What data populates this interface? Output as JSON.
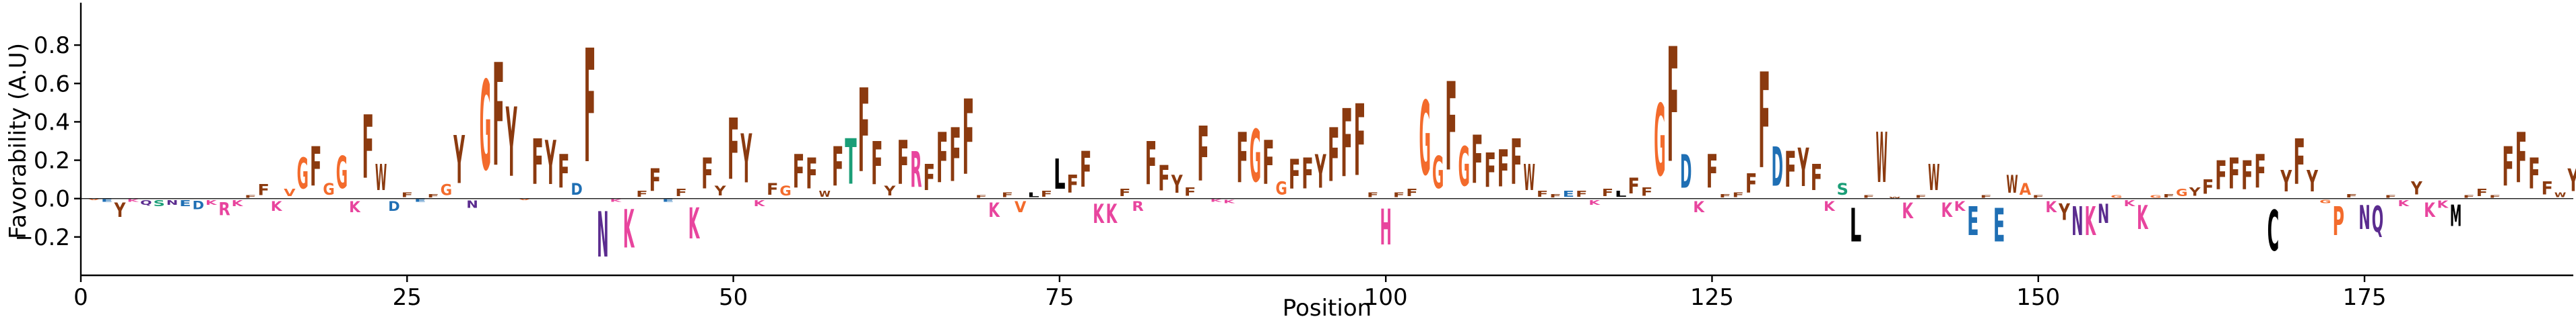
{
  "chart_data": {
    "type": "bar",
    "kind": "sequence-logo",
    "title": "",
    "xlabel": "Position",
    "ylabel": "Favorability (A.U)",
    "xlim": [
      0,
      191
    ],
    "ylim": [
      -0.4,
      1.0
    ],
    "x_ticks": [
      0,
      25,
      50,
      75,
      100,
      125,
      150,
      175
    ],
    "y_ticks": [
      -0.2,
      0.0,
      0.2,
      0.4,
      0.6,
      0.8
    ],
    "y_tick_labels": [
      "−0.2",
      "0.0",
      "0.2",
      "0.4",
      "0.6",
      "0.8"
    ],
    "colors": {
      "F": "#8B3A0F",
      "W": "#8B3A0F",
      "Y": "#8B3A0F",
      "G": "#F36B2C",
      "V": "#F36B2C",
      "A": "#F36B2C",
      "I": "#F36B2C",
      "L": "#000000",
      "M": "#000000",
      "C": "#000000",
      "D": "#1F6FB4",
      "E": "#1F6FB4",
      "K": "#E8459E",
      "R": "#E8459E",
      "H": "#E8459E",
      "N": "#5B2C8F",
      "Q": "#5B2C8F",
      "S": "#1B9E77",
      "T": "#1B9E77",
      "P": "#F36B2C"
    },
    "positions": [
      {
        "x": 1,
        "letter": "V",
        "value": -0.01
      },
      {
        "x": 2,
        "letter": "E",
        "value": -0.02
      },
      {
        "x": 3,
        "letter": "Y",
        "value": -0.12
      },
      {
        "x": 4,
        "letter": "K",
        "value": -0.02
      },
      {
        "x": 5,
        "letter": "Q",
        "value": -0.04
      },
      {
        "x": 6,
        "letter": "S",
        "value": -0.05
      },
      {
        "x": 7,
        "letter": "N",
        "value": -0.04
      },
      {
        "x": 8,
        "letter": "E",
        "value": -0.05
      },
      {
        "x": 9,
        "letter": "D",
        "value": -0.07
      },
      {
        "x": 10,
        "letter": "K",
        "value": -0.04
      },
      {
        "x": 11,
        "letter": "R",
        "value": -0.11
      },
      {
        "x": 12,
        "letter": "K",
        "value": -0.05
      },
      {
        "x": 13,
        "letter": "F",
        "value": 0.02
      },
      {
        "x": 14,
        "letter": "F",
        "value": 0.09
      },
      {
        "x": 15,
        "letter": "K",
        "value": -0.08
      },
      {
        "x": 16,
        "letter": "V",
        "value": 0.06
      },
      {
        "x": 17,
        "letter": "G",
        "value": 0.26
      },
      {
        "x": 18,
        "letter": "F",
        "value": 0.33
      },
      {
        "x": 19,
        "letter": "G",
        "value": 0.1
      },
      {
        "x": 20,
        "letter": "G",
        "value": 0.27
      },
      {
        "x": 21,
        "letter": "K",
        "value": -0.09
      },
      {
        "x": 22,
        "letter": "F",
        "value": 0.53
      },
      {
        "x": 23,
        "letter": "W",
        "value": 0.22
      },
      {
        "x": 24,
        "letter": "D",
        "value": -0.08
      },
      {
        "x": 25,
        "letter": "F",
        "value": 0.04
      },
      {
        "x": 26,
        "letter": "E",
        "value": -0.02
      },
      {
        "x": 27,
        "letter": "F",
        "value": 0.03
      },
      {
        "x": 28,
        "letter": "G",
        "value": 0.09
      },
      {
        "x": 29,
        "letter": "Y",
        "value": 0.4
      },
      {
        "x": 30,
        "letter": "N",
        "value": -0.06
      },
      {
        "x": 31,
        "letter": "G",
        "value": 0.75
      },
      {
        "x": 32,
        "letter": "F",
        "value": 0.86
      },
      {
        "x": 33,
        "letter": "Y",
        "value": 0.58
      },
      {
        "x": 34,
        "letter": "V",
        "value": -0.01
      },
      {
        "x": 35,
        "letter": "F",
        "value": 0.38
      },
      {
        "x": 36,
        "letter": "Y",
        "value": 0.37
      },
      {
        "x": 37,
        "letter": "F",
        "value": 0.28
      },
      {
        "x": 38,
        "letter": "D",
        "value": 0.1
      },
      {
        "x": 39,
        "letter": "F",
        "value": 0.95
      },
      {
        "x": 40,
        "letter": "N",
        "value": -0.38
      },
      {
        "x": 41,
        "letter": "K",
        "value": -0.02
      },
      {
        "x": 42,
        "letter": "K",
        "value": -0.32
      },
      {
        "x": 43,
        "letter": "F",
        "value": 0.05
      },
      {
        "x": 44,
        "letter": "F",
        "value": 0.19
      },
      {
        "x": 45,
        "letter": "E",
        "value": -0.02
      },
      {
        "x": 46,
        "letter": "F",
        "value": 0.06
      },
      {
        "x": 47,
        "letter": "K",
        "value": -0.26
      },
      {
        "x": 48,
        "letter": "F",
        "value": 0.26
      },
      {
        "x": 49,
        "letter": "Y",
        "value": 0.08
      },
      {
        "x": 50,
        "letter": "F",
        "value": 0.51
      },
      {
        "x": 51,
        "letter": "Y",
        "value": 0.41
      },
      {
        "x": 52,
        "letter": "K",
        "value": -0.05
      },
      {
        "x": 53,
        "letter": "F",
        "value": 0.1
      },
      {
        "x": 54,
        "letter": "G",
        "value": 0.08
      },
      {
        "x": 55,
        "letter": "F",
        "value": 0.28
      },
      {
        "x": 56,
        "letter": "F",
        "value": 0.26
      },
      {
        "x": 57,
        "letter": "W",
        "value": 0.05
      },
      {
        "x": 58,
        "letter": "F",
        "value": 0.33
      },
      {
        "x": 59,
        "letter": "T",
        "value": 0.38
      },
      {
        "x": 60,
        "letter": "F",
        "value": 0.7
      },
      {
        "x": 61,
        "letter": "F",
        "value": 0.36
      },
      {
        "x": 62,
        "letter": "Y",
        "value": 0.08
      },
      {
        "x": 63,
        "letter": "F",
        "value": 0.37
      },
      {
        "x": 64,
        "letter": "R",
        "value": 0.3
      },
      {
        "x": 65,
        "letter": "F",
        "value": 0.22
      },
      {
        "x": 66,
        "letter": "F",
        "value": 0.42
      },
      {
        "x": 67,
        "letter": "F",
        "value": 0.45
      },
      {
        "x": 68,
        "letter": "F",
        "value": 0.63
      },
      {
        "x": 69,
        "letter": "F",
        "value": 0.02
      },
      {
        "x": 70,
        "letter": "K",
        "value": -0.12
      },
      {
        "x": 71,
        "letter": "F",
        "value": 0.04
      },
      {
        "x": 72,
        "letter": "V",
        "value": -0.09
      },
      {
        "x": 73,
        "letter": "L",
        "value": 0.04
      },
      {
        "x": 74,
        "letter": "F",
        "value": 0.05
      },
      {
        "x": 75,
        "letter": "L",
        "value": 0.25
      },
      {
        "x": 76,
        "letter": "F",
        "value": 0.15
      },
      {
        "x": 77,
        "letter": "F",
        "value": 0.3
      },
      {
        "x": 78,
        "letter": "K",
        "value": -0.16
      },
      {
        "x": 79,
        "letter": "K",
        "value": -0.16
      },
      {
        "x": 80,
        "letter": "F",
        "value": 0.06
      },
      {
        "x": 81,
        "letter": "R",
        "value": -0.08
      },
      {
        "x": 82,
        "letter": "F",
        "value": 0.36
      },
      {
        "x": 83,
        "letter": "F",
        "value": 0.21
      },
      {
        "x": 84,
        "letter": "Y",
        "value": 0.15
      },
      {
        "x": 85,
        "letter": "F",
        "value": 0.07
      },
      {
        "x": 86,
        "letter": "F",
        "value": 0.46
      },
      {
        "x": 87,
        "letter": "K",
        "value": -0.02
      },
      {
        "x": 88,
        "letter": "K",
        "value": -0.03
      },
      {
        "x": 89,
        "letter": "F",
        "value": 0.42
      },
      {
        "x": 90,
        "letter": "G",
        "value": 0.44
      },
      {
        "x": 91,
        "letter": "F",
        "value": 0.37
      },
      {
        "x": 92,
        "letter": "G",
        "value": 0.11
      },
      {
        "x": 93,
        "letter": "F",
        "value": 0.25
      },
      {
        "x": 94,
        "letter": "F",
        "value": 0.26
      },
      {
        "x": 95,
        "letter": "Y",
        "value": 0.28
      },
      {
        "x": 96,
        "letter": "F",
        "value": 0.45
      },
      {
        "x": 97,
        "letter": "F",
        "value": 0.57
      },
      {
        "x": 98,
        "letter": "F",
        "value": 0.6
      },
      {
        "x": 99,
        "letter": "F",
        "value": 0.04
      },
      {
        "x": 100,
        "letter": "H",
        "value": -0.3
      },
      {
        "x": 101,
        "letter": "F",
        "value": 0.04
      },
      {
        "x": 102,
        "letter": "F",
        "value": 0.06
      },
      {
        "x": 103,
        "letter": "G",
        "value": 0.62
      },
      {
        "x": 104,
        "letter": "G",
        "value": 0.27
      },
      {
        "x": 105,
        "letter": "F",
        "value": 0.74
      },
      {
        "x": 106,
        "letter": "G",
        "value": 0.33
      },
      {
        "x": 107,
        "letter": "F",
        "value": 0.4
      },
      {
        "x": 108,
        "letter": "F",
        "value": 0.29
      },
      {
        "x": 109,
        "letter": "F",
        "value": 0.31
      },
      {
        "x": 110,
        "letter": "F",
        "value": 0.38
      },
      {
        "x": 111,
        "letter": "W",
        "value": 0.22
      },
      {
        "x": 112,
        "letter": "F",
        "value": 0.05
      },
      {
        "x": 113,
        "letter": "F",
        "value": 0.03
      },
      {
        "x": 114,
        "letter": "E",
        "value": 0.05
      },
      {
        "x": 115,
        "letter": "F",
        "value": 0.05
      },
      {
        "x": 116,
        "letter": "K",
        "value": -0.04
      },
      {
        "x": 117,
        "letter": "F",
        "value": 0.06
      },
      {
        "x": 118,
        "letter": "L",
        "value": 0.05
      },
      {
        "x": 119,
        "letter": "F",
        "value": 0.13
      },
      {
        "x": 120,
        "letter": "F",
        "value": 0.07
      },
      {
        "x": 121,
        "letter": "G",
        "value": 0.6
      },
      {
        "x": 122,
        "letter": "F",
        "value": 0.96
      },
      {
        "x": 123,
        "letter": "D",
        "value": 0.28
      },
      {
        "x": 124,
        "letter": "K",
        "value": -0.09
      },
      {
        "x": 125,
        "letter": "F",
        "value": 0.28
      },
      {
        "x": 126,
        "letter": "F",
        "value": 0.03
      },
      {
        "x": 127,
        "letter": "F",
        "value": 0.04
      },
      {
        "x": 128,
        "letter": "F",
        "value": 0.16
      },
      {
        "x": 129,
        "letter": "F",
        "value": 0.8
      },
      {
        "x": 130,
        "letter": "D",
        "value": 0.33
      },
      {
        "x": 131,
        "letter": "F",
        "value": 0.3
      },
      {
        "x": 132,
        "letter": "Y",
        "value": 0.32
      },
      {
        "x": 133,
        "letter": "F",
        "value": 0.22
      },
      {
        "x": 134,
        "letter": "K",
        "value": -0.08
      },
      {
        "x": 135,
        "letter": "S",
        "value": 0.1
      },
      {
        "x": 136,
        "letter": "L",
        "value": -0.28
      },
      {
        "x": 137,
        "letter": "F",
        "value": 0.02
      },
      {
        "x": 138,
        "letter": "W",
        "value": 0.42
      },
      {
        "x": 139,
        "letter": "W",
        "value": 0.01
      },
      {
        "x": 140,
        "letter": "K",
        "value": -0.13
      },
      {
        "x": 141,
        "letter": "F",
        "value": 0.02
      },
      {
        "x": 142,
        "letter": "W",
        "value": 0.22
      },
      {
        "x": 143,
        "letter": "K",
        "value": -0.12
      },
      {
        "x": 144,
        "letter": "K",
        "value": -0.08
      },
      {
        "x": 145,
        "letter": "E",
        "value": -0.24
      },
      {
        "x": 146,
        "letter": "F",
        "value": 0.02
      },
      {
        "x": 147,
        "letter": "E",
        "value": -0.28
      },
      {
        "x": 148,
        "letter": "W",
        "value": 0.15
      },
      {
        "x": 149,
        "letter": "A",
        "value": 0.1
      },
      {
        "x": 150,
        "letter": "F",
        "value": 0.02
      },
      {
        "x": 151,
        "letter": "K",
        "value": -0.09
      },
      {
        "x": 152,
        "letter": "Y",
        "value": -0.14
      },
      {
        "x": 153,
        "letter": "N",
        "value": -0.24
      },
      {
        "x": 154,
        "letter": "K",
        "value": -0.24
      },
      {
        "x": 155,
        "letter": "N",
        "value": -0.16
      },
      {
        "x": 156,
        "letter": "G",
        "value": 0.02
      },
      {
        "x": 157,
        "letter": "K",
        "value": -0.05
      },
      {
        "x": 158,
        "letter": "K",
        "value": -0.2
      },
      {
        "x": 159,
        "letter": "G",
        "value": 0.02
      },
      {
        "x": 160,
        "letter": "F",
        "value": 0.03
      },
      {
        "x": 161,
        "letter": "G",
        "value": 0.06
      },
      {
        "x": 162,
        "letter": "Y",
        "value": 0.07
      },
      {
        "x": 163,
        "letter": "F",
        "value": 0.12
      },
      {
        "x": 164,
        "letter": "F",
        "value": 0.24
      },
      {
        "x": 165,
        "letter": "F",
        "value": 0.26
      },
      {
        "x": 166,
        "letter": "F",
        "value": 0.24
      },
      {
        "x": 167,
        "letter": "F",
        "value": 0.28
      },
      {
        "x": 168,
        "letter": "C",
        "value": -0.34
      },
      {
        "x": 169,
        "letter": "Y",
        "value": 0.18
      },
      {
        "x": 170,
        "letter": "F",
        "value": 0.38
      },
      {
        "x": 171,
        "letter": "Y",
        "value": 0.18
      },
      {
        "x": 172,
        "letter": "G",
        "value": -0.03
      },
      {
        "x": 173,
        "letter": "P",
        "value": -0.24
      },
      {
        "x": 174,
        "letter": "F",
        "value": 0.03
      },
      {
        "x": 175,
        "letter": "N",
        "value": -0.2
      },
      {
        "x": 176,
        "letter": "Q",
        "value": -0.22
      },
      {
        "x": 177,
        "letter": "F",
        "value": 0.02
      },
      {
        "x": 178,
        "letter": "K",
        "value": -0.05
      },
      {
        "x": 179,
        "letter": "Y",
        "value": 0.11
      },
      {
        "x": 180,
        "letter": "K",
        "value": -0.12
      },
      {
        "x": 181,
        "letter": "K",
        "value": -0.06
      },
      {
        "x": 182,
        "letter": "M",
        "value": -0.18
      },
      {
        "x": 183,
        "letter": "F",
        "value": 0.02
      },
      {
        "x": 184,
        "letter": "F",
        "value": 0.06
      },
      {
        "x": 185,
        "letter": "F",
        "value": 0.02
      },
      {
        "x": 186,
        "letter": "F",
        "value": 0.33
      },
      {
        "x": 187,
        "letter": "F",
        "value": 0.42
      },
      {
        "x": 188,
        "letter": "F",
        "value": 0.26
      },
      {
        "x": 189,
        "letter": "F",
        "value": 0.11
      },
      {
        "x": 190,
        "letter": "W",
        "value": 0.04
      },
      {
        "x": 191,
        "letter": "Y",
        "value": 0.19
      }
    ]
  }
}
